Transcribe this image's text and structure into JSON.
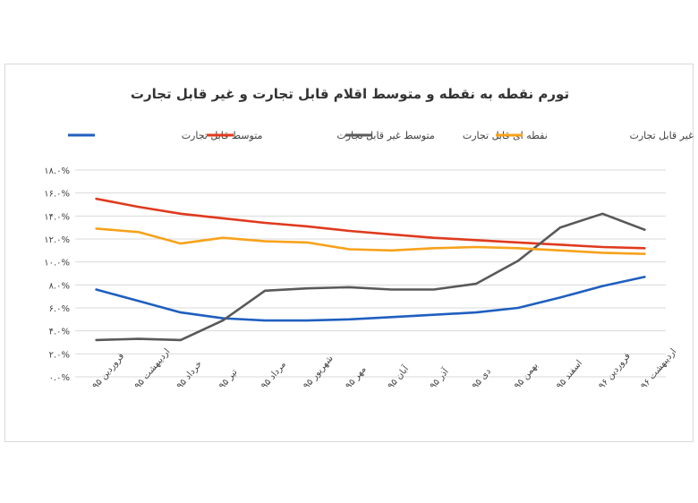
{
  "chart_data": {
    "type": "line",
    "title": "تورم نقطه به نقطه و متوسط اقلام قابل تجارت و غیر قابل تجارت",
    "xlabel": "",
    "ylabel": "",
    "categories": [
      "فروردین ۹۵",
      "اردیبهشت ۹۵",
      "خرداد ۹۵",
      "تیر ۹۵",
      "مرداد ۹۵",
      "شهریور ۹۵",
      "مهر ۹۵",
      "آبان ۹۵",
      "آذر ۹۵",
      "دی ۹۵",
      "بهمن ۹۵",
      "اسفند ۹۵",
      "فروردین ۹۶",
      "اردیبهشت ۹۶"
    ],
    "ylim": [
      0,
      18
    ],
    "yticks": [
      0,
      2,
      4,
      6,
      8,
      10,
      12,
      14,
      16,
      18
    ],
    "ytick_labels": [
      "۰.۰%",
      "۲.۰%",
      "۴.۰%",
      "۶.۰%",
      "۸.۰%",
      "۱۰.۰%",
      "۱۲.۰%",
      "۱۴.۰%",
      "۱۶.۰%",
      "۱۸.۰%"
    ],
    "grid": true,
    "legend_position": "top",
    "series": [
      {
        "name": "متوسط قابل تجارت",
        "color": "#1f5fbf",
        "values": [
          7.6,
          6.6,
          5.6,
          5.1,
          4.9,
          4.9,
          5.0,
          5.2,
          5.4,
          5.6,
          6.0,
          6.9,
          7.9,
          8.7
        ]
      },
      {
        "name": "متوسط غیر قابل تجارت",
        "color": "#e03a1e",
        "values": [
          15.5,
          14.8,
          14.2,
          13.8,
          13.4,
          13.1,
          12.7,
          12.4,
          12.1,
          11.9,
          11.7,
          11.5,
          11.3,
          11.2
        ]
      },
      {
        "name": "نقطه ای قابل تجارت",
        "color": "#595959",
        "values": [
          3.2,
          3.3,
          3.2,
          4.9,
          7.5,
          7.7,
          7.8,
          7.6,
          7.6,
          8.1,
          10.1,
          13.0,
          14.2,
          12.8
        ]
      },
      {
        "name": "نقطه ای غیر قابل تجارت",
        "color": "#f7a21b",
        "values": [
          12.9,
          12.6,
          11.6,
          12.1,
          11.8,
          11.7,
          11.1,
          11.0,
          11.2,
          11.3,
          11.2,
          11.0,
          10.8,
          10.7
        ]
      }
    ]
  }
}
